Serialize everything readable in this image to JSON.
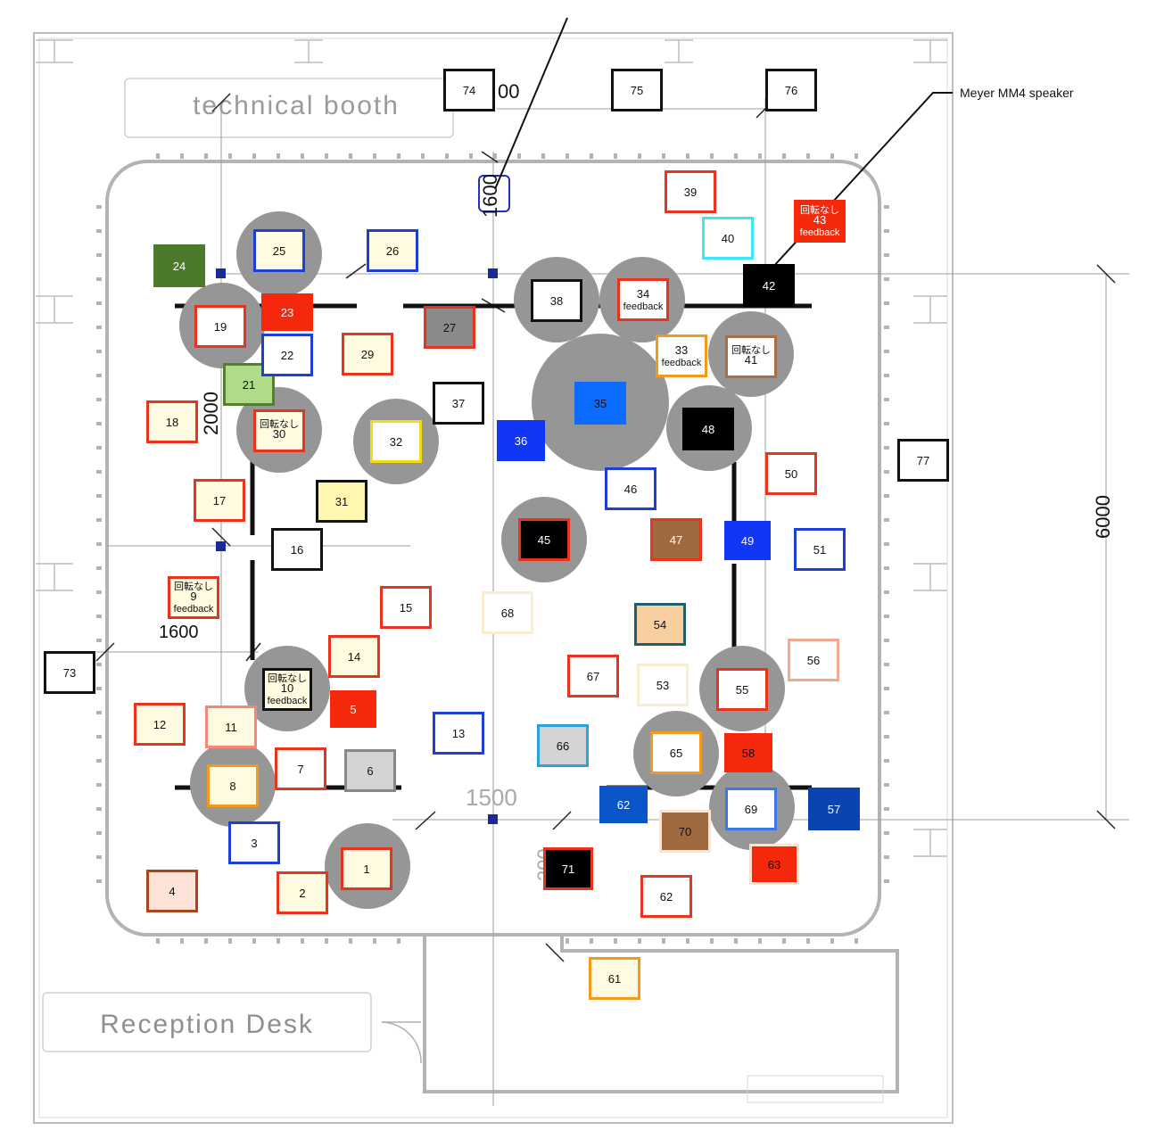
{
  "rooms": {
    "technical_booth": "technical booth",
    "reception_desk": "Reception Desk"
  },
  "annotations": {
    "speaker_callout": "Meyer MM4 speaker"
  },
  "dimensions": {
    "d_1600_top": "1600",
    "d_00_top": "00",
    "d_2000_left": "2000",
    "d_1600_left": "1600",
    "d_1500_bottom": "1500",
    "d_200_bottom": "200",
    "d_6000_right": "6000"
  },
  "boxes": [
    {
      "id": "b1",
      "label": "1",
      "fill": "#fffbe0",
      "stroke": "#e8341c"
    },
    {
      "id": "b2",
      "label": "2",
      "fill": "#fffbe0",
      "stroke": "#e8341c"
    },
    {
      "id": "b3",
      "label": "3",
      "fill": "#ffffff",
      "stroke": "#1d3fd6"
    },
    {
      "id": "b4",
      "label": "4",
      "fill": "#fde2d8",
      "stroke": "#a7461c"
    },
    {
      "id": "b5",
      "label": "5",
      "fill": "#f5280c",
      "stroke": "#f5280c",
      "text": "#ffffff"
    },
    {
      "id": "b6",
      "label": "6",
      "fill": "#d3d3d3",
      "stroke": "#888888"
    },
    {
      "id": "b7",
      "label": "7",
      "fill": "#ffffff",
      "stroke": "#e8341c"
    },
    {
      "id": "b8",
      "label": "8",
      "fill": "#fffbe0",
      "stroke": "#f39a1d"
    },
    {
      "id": "b9",
      "label": "9",
      "fill": "#fffbe0",
      "stroke": "#e8341c",
      "top_note": "回転なし",
      "bottom_note": "feedback"
    },
    {
      "id": "b10",
      "label": "10",
      "fill": "#fffbe0",
      "stroke": "#111111",
      "top_note": "回転なし",
      "bottom_note": "feedback"
    },
    {
      "id": "b11",
      "label": "11",
      "fill": "#fffbe0",
      "stroke": "#f4877a"
    },
    {
      "id": "b12",
      "label": "12",
      "fill": "#fffbe0",
      "stroke": "#e8341c"
    },
    {
      "id": "b13",
      "label": "13",
      "fill": "#ffffff",
      "stroke": "#1d3fd6"
    },
    {
      "id": "b14",
      "label": "14",
      "fill": "#fffbe0",
      "stroke": "#e8341c"
    },
    {
      "id": "b15",
      "label": "15",
      "fill": "#ffffff",
      "stroke": "#e8341c"
    },
    {
      "id": "b16",
      "label": "16",
      "fill": "#ffffff",
      "stroke": "#111111"
    },
    {
      "id": "b17",
      "label": "17",
      "fill": "#fffbe0",
      "stroke": "#e8341c"
    },
    {
      "id": "b18",
      "label": "18",
      "fill": "#fffbe0",
      "stroke": "#e8341c"
    },
    {
      "id": "b19",
      "label": "19",
      "fill": "#ffffff",
      "stroke": "#e8341c"
    },
    {
      "id": "b21",
      "label": "21",
      "fill": "#b0dc8a",
      "stroke": "#54802e"
    },
    {
      "id": "b22",
      "label": "22",
      "fill": "#ffffff",
      "stroke": "#1d3fd6"
    },
    {
      "id": "b23",
      "label": "23",
      "fill": "#f5280c",
      "stroke": "#f5280c",
      "text": "#ffffff"
    },
    {
      "id": "b24",
      "label": "24",
      "fill": "#4a7a2a",
      "stroke": "#4a7a2a",
      "text": "#ffffff"
    },
    {
      "id": "b25",
      "label": "25",
      "fill": "#fffbe0",
      "stroke": "#1d3fd6"
    },
    {
      "id": "b26",
      "label": "26",
      "fill": "#fffbe0",
      "stroke": "#1d3fd6"
    },
    {
      "id": "b27",
      "label": "27",
      "fill": "#8a8a8a",
      "stroke": "#e8341c"
    },
    {
      "id": "b29",
      "label": "29",
      "fill": "#fffbe0",
      "stroke": "#e8341c"
    },
    {
      "id": "b30",
      "label": "30",
      "fill": "#fffbe0",
      "stroke": "#e8341c",
      "top_note": "回転なし"
    },
    {
      "id": "b31",
      "label": "31",
      "fill": "#fff7b0",
      "stroke": "#111111"
    },
    {
      "id": "b32",
      "label": "32",
      "fill": "#ffffff",
      "stroke": "#f2dd12"
    },
    {
      "id": "b33",
      "label": "33",
      "fill": "#ffffff",
      "stroke": "#f39a1d",
      "bottom_note": "feedback"
    },
    {
      "id": "b34",
      "label": "34",
      "fill": "#ffffff",
      "stroke": "#e8341c",
      "bottom_note": "feedback"
    },
    {
      "id": "b35",
      "label": "35",
      "fill": "#0b6cff",
      "stroke": "#0b6cff",
      "text": "#111111"
    },
    {
      "id": "b36",
      "label": "36",
      "fill": "#1236f5",
      "stroke": "#1236f5",
      "text": "#ffffff"
    },
    {
      "id": "b37",
      "label": "37",
      "fill": "#ffffff",
      "stroke": "#111111"
    },
    {
      "id": "b38",
      "label": "38",
      "fill": "#ffffff",
      "stroke": "#111111"
    },
    {
      "id": "b39",
      "label": "39",
      "fill": "#ffffff",
      "stroke": "#e8341c"
    },
    {
      "id": "b40",
      "label": "40",
      "fill": "#ffffff",
      "stroke": "#3ee5f2"
    },
    {
      "id": "b41",
      "label": "41",
      "fill": "#ffffff",
      "stroke": "#a7704a",
      "top_note": "回転なし"
    },
    {
      "id": "b42",
      "label": "42",
      "fill": "#000000",
      "stroke": "#000000",
      "text": "#ffffff"
    },
    {
      "id": "b43",
      "label": "43",
      "fill": "#f5280c",
      "stroke": "#f5280c",
      "text": "#ffffff",
      "top_note": "回転なし",
      "bottom_note": "feedback"
    },
    {
      "id": "b45",
      "label": "45",
      "fill": "#000000",
      "stroke": "#e8341c",
      "text": "#ffffff"
    },
    {
      "id": "b46",
      "label": "46",
      "fill": "#ffffff",
      "stroke": "#1d3fd6"
    },
    {
      "id": "b47",
      "label": "47",
      "fill": "#a06a40",
      "stroke": "#e8341c",
      "text": "#ffffff"
    },
    {
      "id": "b48",
      "label": "48",
      "fill": "#000000",
      "stroke": "#000000",
      "text": "#ffffff"
    },
    {
      "id": "b49",
      "label": "49",
      "fill": "#1236f5",
      "stroke": "#1236f5",
      "text": "#ffffff"
    },
    {
      "id": "b50",
      "label": "50",
      "fill": "#ffffff",
      "stroke": "#e8341c"
    },
    {
      "id": "b51",
      "label": "51",
      "fill": "#ffffff",
      "stroke": "#1d3fd6"
    },
    {
      "id": "b53",
      "label": "53",
      "fill": "#ffffff",
      "stroke": "#fbeed0"
    },
    {
      "id": "b54",
      "label": "54",
      "fill": "#f9cfa0",
      "stroke": "#1f5f6f"
    },
    {
      "id": "b55",
      "label": "55",
      "fill": "#ffffff",
      "stroke": "#e8341c"
    },
    {
      "id": "b56",
      "label": "56",
      "fill": "#ffffff",
      "stroke": "#f0a890"
    },
    {
      "id": "b57",
      "label": "57",
      "fill": "#0a44b0",
      "stroke": "#0a44b0",
      "text": "#ffffff"
    },
    {
      "id": "b58",
      "label": "58",
      "fill": "#f5280c",
      "stroke": "#f5280c",
      "text": "#111111"
    },
    {
      "id": "b61",
      "label": "61",
      "fill": "#fffbe0",
      "stroke": "#f39a1d"
    },
    {
      "id": "b62a",
      "label": "62",
      "fill": "#0a55c8",
      "stroke": "#0a55c8",
      "text": "#ffffff"
    },
    {
      "id": "b62b",
      "label": "62",
      "fill": "#ffffff",
      "stroke": "#e8341c"
    },
    {
      "id": "b63",
      "label": "63",
      "fill": "#f5280c",
      "stroke": "#fbe4d0",
      "text": "#111111"
    },
    {
      "id": "b65",
      "label": "65",
      "fill": "#ffffff",
      "stroke": "#f39a1d"
    },
    {
      "id": "b66",
      "label": "66",
      "fill": "#d3d3d3",
      "stroke": "#2aa3d8"
    },
    {
      "id": "b67",
      "label": "67",
      "fill": "#ffffff",
      "stroke": "#e8341c"
    },
    {
      "id": "b68",
      "label": "68",
      "fill": "#ffffff",
      "stroke": "#fbeed0"
    },
    {
      "id": "b69",
      "label": "69",
      "fill": "#ffffff",
      "stroke": "#3a7ae8"
    },
    {
      "id": "b70",
      "label": "70",
      "fill": "#a06a40",
      "stroke": "#fbe4d0"
    },
    {
      "id": "b71",
      "label": "71",
      "fill": "#000000",
      "stroke": "#e8341c",
      "text": "#ffffff"
    },
    {
      "id": "b73",
      "label": "73",
      "fill": "#ffffff",
      "stroke": "#111111"
    },
    {
      "id": "b74",
      "label": "74",
      "fill": "#ffffff",
      "stroke": "#111111"
    },
    {
      "id": "b75",
      "label": "75",
      "fill": "#ffffff",
      "stroke": "#111111"
    },
    {
      "id": "b76",
      "label": "76",
      "fill": "#ffffff",
      "stroke": "#111111"
    },
    {
      "id": "b77",
      "label": "77",
      "fill": "#ffffff",
      "stroke": "#111111"
    }
  ]
}
